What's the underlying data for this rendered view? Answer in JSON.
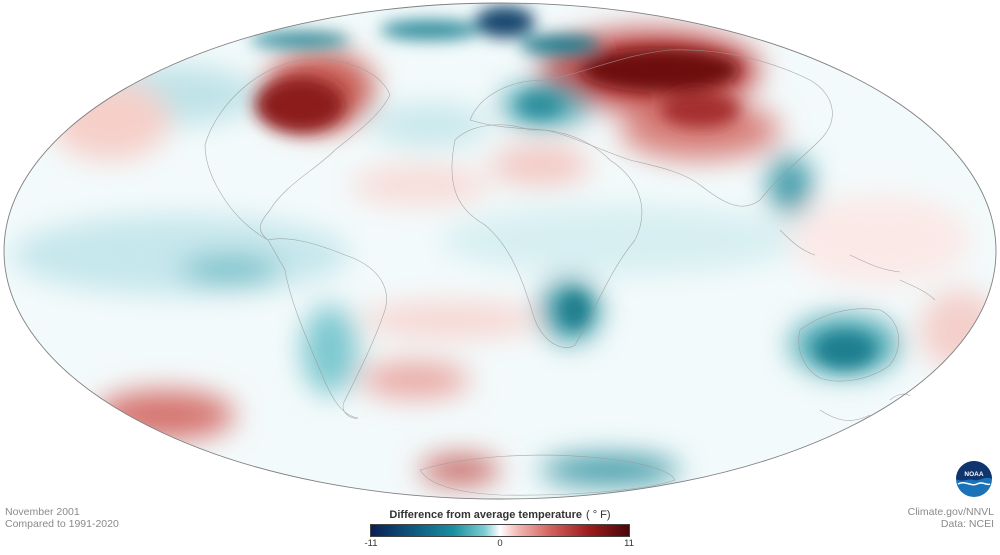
{
  "map": {
    "title": "",
    "projection": "Mollweide",
    "variable": "Surface temperature anomaly",
    "anomalies": [
      {
        "region": "Northeastern North America",
        "sign": "warm",
        "strength": "strong"
      },
      {
        "region": "Siberia / Northern Asia",
        "sign": "warm",
        "strength": "strong"
      },
      {
        "region": "Arctic Ocean",
        "sign": "mixed",
        "strength": "moderate"
      },
      {
        "region": "Europe",
        "sign": "cool",
        "strength": "moderate"
      },
      {
        "region": "Eastern China",
        "sign": "cool",
        "strength": "moderate"
      },
      {
        "region": "Southern Africa",
        "sign": "cool",
        "strength": "moderate"
      },
      {
        "region": "Australia",
        "sign": "cool",
        "strength": "moderate"
      },
      {
        "region": "South Pacific",
        "sign": "warm",
        "strength": "moderate"
      },
      {
        "region": "Antarctica",
        "sign": "mixed",
        "strength": "moderate"
      }
    ]
  },
  "info": {
    "date": "November 2001",
    "baseline": "Compared to 1991-2020"
  },
  "legend": {
    "title": "Difference from average temperature",
    "unit": "( ° F)",
    "min": "-11",
    "mid": "0",
    "max": "11",
    "colors": [
      "#0b1f55",
      "#1b8f9f",
      "#ffffff",
      "#d0605a",
      "#4a0808"
    ]
  },
  "credits": {
    "line1": "Climate.gov/NNVL",
    "line2": "Data: NCEI"
  },
  "logo": {
    "icon": "noaa-logo-icon",
    "text": "NOAA"
  }
}
